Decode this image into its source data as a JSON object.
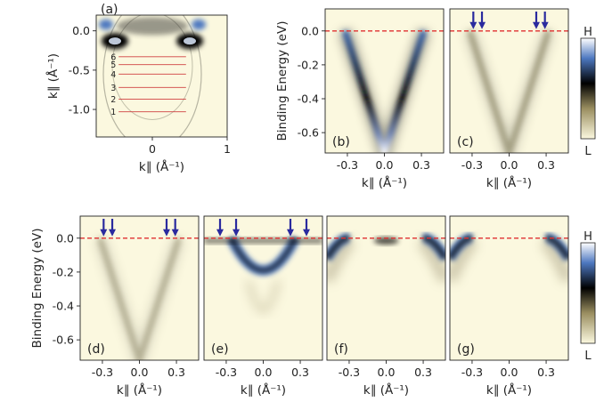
{
  "colors": {
    "background": "#fbf8df",
    "fermi_line": "#e03030",
    "arrow": "#2a2a9e",
    "cut_line": "#d04040",
    "band_core": "#000000",
    "band_high": "#4d78c0"
  },
  "colorbar": {
    "high_label": "H",
    "low_label": "L"
  },
  "chart_data": [
    {
      "panel": "(a)",
      "type": "heatmap",
      "xlabel": "k∥ (Å⁻¹)",
      "ylabel": "k∥ (Å⁻¹)",
      "xlim": [
        -0.75,
        1.0
      ],
      "ylim": [
        -1.35,
        0.2
      ],
      "xticks": [
        "0",
        "1"
      ],
      "yticks": [
        "0.0",
        "-0.5",
        "-1.0"
      ],
      "cuts": [
        {
          "label": "1",
          "ky": -1.03
        },
        {
          "label": "2",
          "ky": -0.87
        },
        {
          "label": "3",
          "ky": -0.72
        },
        {
          "label": "4",
          "ky": -0.55
        },
        {
          "label": "5",
          "ky": -0.43
        },
        {
          "label": "6",
          "ky": -0.33
        }
      ]
    },
    {
      "panel": "(b)",
      "type": "heatmap",
      "band": "v",
      "intensity": 1.0,
      "xlabel": "k∥ (Å⁻¹)",
      "ylabel": "Binding Energy (eV)",
      "xlim": [
        -0.48,
        0.48
      ],
      "ylim": [
        -0.72,
        0.13
      ],
      "xticks": [
        "-0.3",
        "0.0",
        "0.3"
      ],
      "yticks": [
        "0.0",
        "-0.2",
        "-0.4",
        "-0.6"
      ],
      "fermi_level": 0.0,
      "arrows_k": []
    },
    {
      "panel": "(c)",
      "type": "heatmap",
      "band": "v",
      "intensity": 0.45,
      "xlabel": "k∥ (Å⁻¹)",
      "xlim": [
        -0.48,
        0.48
      ],
      "ylim": [
        -0.72,
        0.13
      ],
      "xticks": [
        "-0.3",
        "0.0",
        "0.3"
      ],
      "fermi_level": 0.0,
      "arrows_k": [
        -0.29,
        -0.22,
        0.22,
        0.29
      ]
    },
    {
      "panel": "(d)",
      "type": "heatmap",
      "band": "v",
      "intensity": 0.35,
      "xlabel": "k∥ (Å⁻¹)",
      "ylabel": "Binding Energy (eV)",
      "xlim": [
        -0.48,
        0.48
      ],
      "ylim": [
        -0.72,
        0.13
      ],
      "xticks": [
        "-0.3",
        "0.0",
        "0.3"
      ],
      "yticks": [
        "0.0",
        "-0.2",
        "-0.4",
        "-0.6"
      ],
      "fermi_level": 0.0,
      "arrows_k": [
        -0.29,
        -0.22,
        0.22,
        0.29
      ]
    },
    {
      "panel": "(e)",
      "type": "heatmap",
      "band": "shallow",
      "intensity": 1.0,
      "xlabel": "k∥ (Å⁻¹)",
      "xlim": [
        -0.48,
        0.48
      ],
      "ylim": [
        -0.72,
        0.13
      ],
      "xticks": [
        "-0.3",
        "0.0",
        "0.3"
      ],
      "fermi_level": 0.0,
      "arrows_k": [
        -0.35,
        -0.22,
        0.22,
        0.35
      ]
    },
    {
      "panel": "(f)",
      "type": "heatmap",
      "band": "edge_pocket",
      "intensity": 1.0,
      "xlabel": "k∥ (Å⁻¹)",
      "xlim": [
        -0.48,
        0.48
      ],
      "ylim": [
        -0.72,
        0.13
      ],
      "xticks": [
        "-0.3",
        "0.0",
        "0.3"
      ],
      "fermi_level": 0.0,
      "arrows_k": []
    },
    {
      "panel": "(g)",
      "type": "heatmap",
      "band": "edge",
      "intensity": 1.0,
      "xlabel": "k∥ (Å⁻¹)",
      "xlim": [
        -0.48,
        0.48
      ],
      "ylim": [
        -0.72,
        0.13
      ],
      "xticks": [
        "-0.3",
        "0.0",
        "0.3"
      ],
      "fermi_level": 0.0,
      "arrows_k": []
    }
  ]
}
